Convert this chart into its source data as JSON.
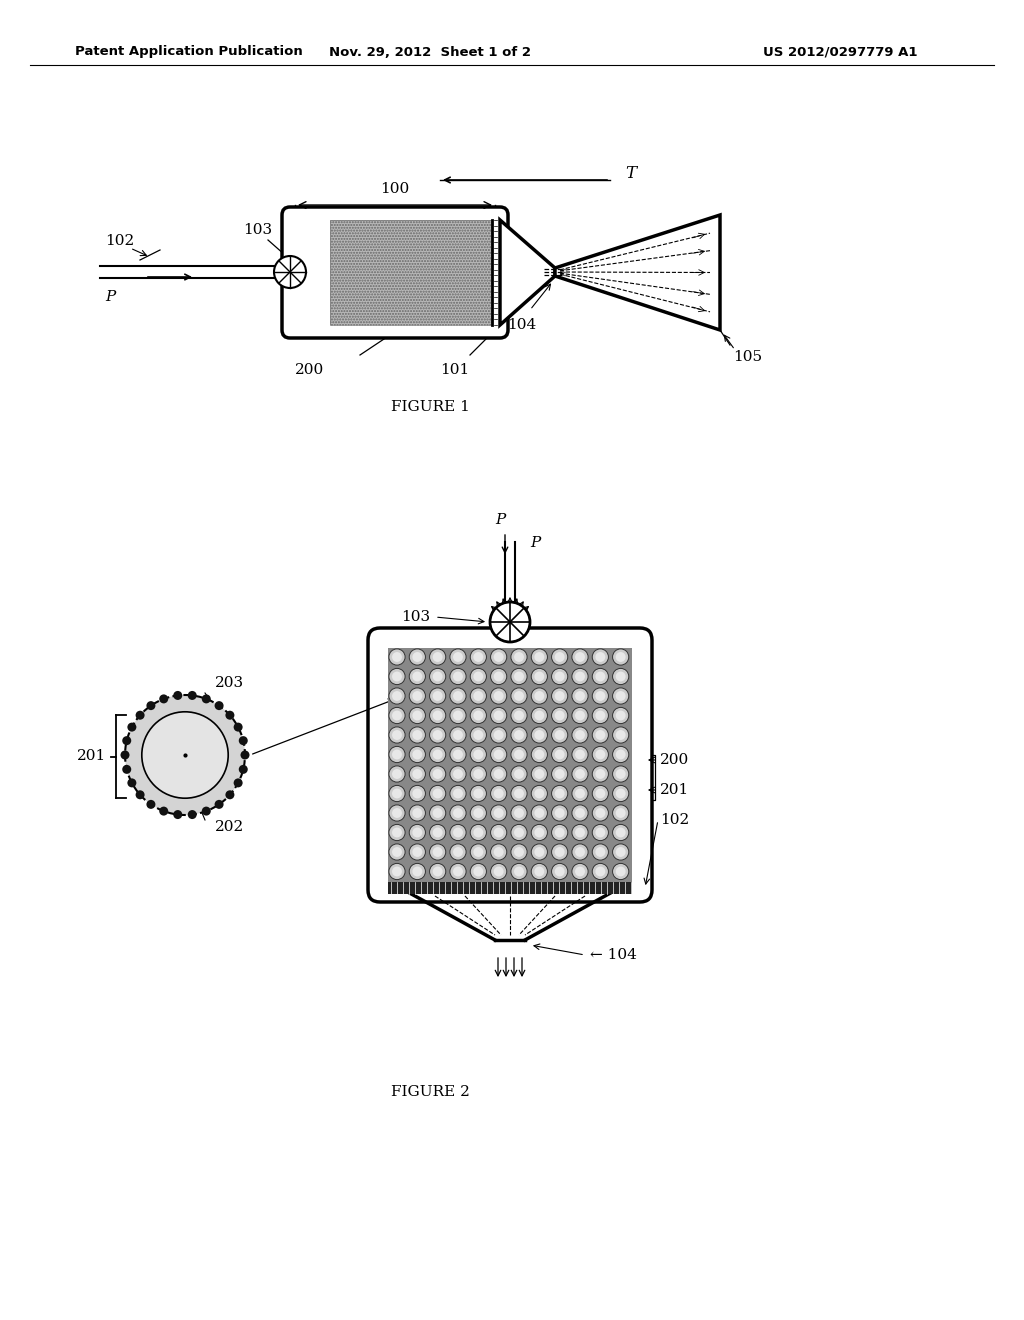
{
  "bg_color": "#ffffff",
  "header_text": "Patent Application Publication",
  "header_date": "Nov. 29, 2012  Sheet 1 of 2",
  "header_patent": "US 2012/0297779 A1",
  "fig1_label": "FIGURE 1",
  "fig2_label": "FIGURE 2"
}
